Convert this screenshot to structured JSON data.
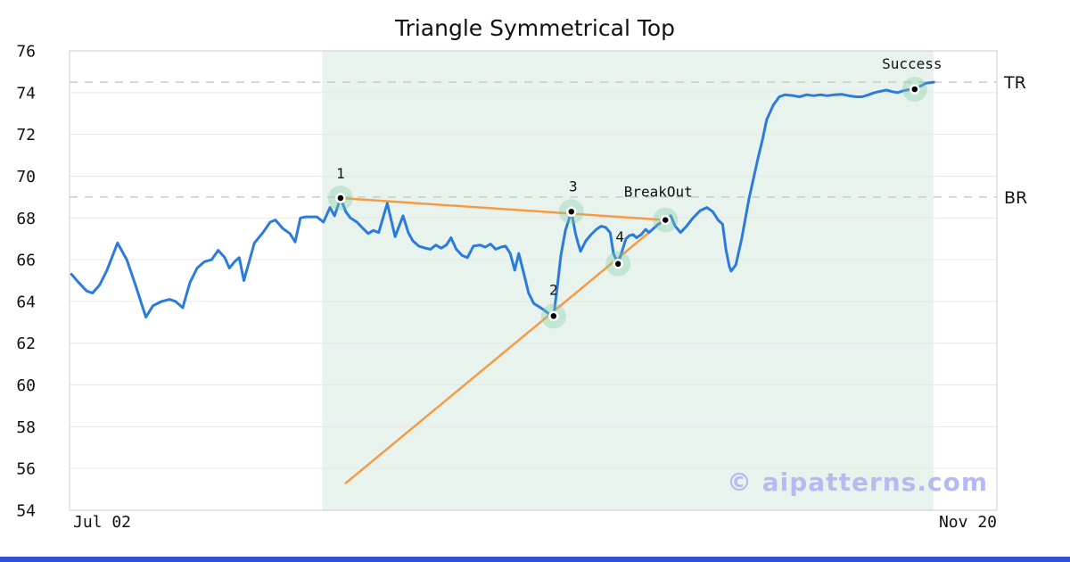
{
  "page": {
    "background": "#ffffff",
    "footer_bar_color": "#2b52d9",
    "text_color": "#111111"
  },
  "watermark": {
    "text": "© aipatterns.com",
    "color": "#b5bbf0"
  },
  "chart_data": {
    "type": "line",
    "title": "Triangle Symmetrical Top",
    "x_axis": {
      "start_label": "Jul 02",
      "end_label": "Nov 20",
      "range_days": [
        0,
        141
      ]
    },
    "y_axis": {
      "min": 54,
      "max": 76,
      "tick_step": 2,
      "ticks": [
        54,
        56,
        58,
        60,
        62,
        64,
        66,
        68,
        70,
        72,
        74,
        76
      ]
    },
    "grid": "horizontal",
    "colors": {
      "price_line": "#2b7bdd",
      "trendline": "#f79b42",
      "pattern_region": "#e9f3ee",
      "gridline": "#e7e7e7",
      "level_dash": "#c9c9c9",
      "plot_border": "#cccccc",
      "marker_halo": "rgba(125,202,160,0.35)",
      "marker_dot": "#000000"
    },
    "levels": [
      {
        "id": "tr",
        "label": "TR",
        "value": 74.5
      },
      {
        "id": "br",
        "label": "BR",
        "value": 69.0
      }
    ],
    "pattern_region": {
      "x_start_day": 38.4,
      "x_end_day": 131.4
    },
    "trendlines": [
      {
        "id": "upper",
        "from": [
          41.2,
          68.95
        ],
        "to": [
          90.6,
          67.9
        ]
      },
      {
        "id": "lower",
        "from": [
          42.0,
          55.3
        ],
        "to": [
          90.6,
          67.95
        ]
      }
    ],
    "markers": [
      {
        "label": "1",
        "day": 41.2,
        "value": 68.95,
        "label_offset": [
          0,
          -22
        ]
      },
      {
        "label": "2",
        "day": 73.6,
        "value": 63.3,
        "label_offset": [
          0,
          -24
        ]
      },
      {
        "label": "3",
        "day": 76.3,
        "value": 68.3,
        "label_offset": [
          2,
          -23
        ]
      },
      {
        "label": "4",
        "day": 83.4,
        "value": 65.8,
        "label_offset": [
          2,
          -25
        ]
      },
      {
        "label": "BreakOut",
        "day": 90.6,
        "value": 67.9,
        "label_offset": [
          -8,
          -26
        ]
      },
      {
        "label": "Success",
        "day": 128.5,
        "value": 74.16,
        "label_offset": [
          -3,
          -23
        ]
      }
    ],
    "price_series": {
      "name": "price",
      "points": [
        [
          0.3,
          65.3
        ],
        [
          1.4,
          64.9
        ],
        [
          2.6,
          64.5
        ],
        [
          3.5,
          64.4
        ],
        [
          4.6,
          64.8
        ],
        [
          5.7,
          65.5
        ],
        [
          7.3,
          66.8
        ],
        [
          8.7,
          66.0
        ],
        [
          10.0,
          64.8
        ],
        [
          11.6,
          63.25
        ],
        [
          12.7,
          63.8
        ],
        [
          14.0,
          64.0
        ],
        [
          15.2,
          64.1
        ],
        [
          16.1,
          64.0
        ],
        [
          17.2,
          63.7
        ],
        [
          18.3,
          64.9
        ],
        [
          19.4,
          65.6
        ],
        [
          20.5,
          65.9
        ],
        [
          21.6,
          66.0
        ],
        [
          22.6,
          66.45
        ],
        [
          23.6,
          66.1
        ],
        [
          24.3,
          65.6
        ],
        [
          25.1,
          65.9
        ],
        [
          25.8,
          66.1
        ],
        [
          26.5,
          65.0
        ],
        [
          28.1,
          66.8
        ],
        [
          29.4,
          67.3
        ],
        [
          30.5,
          67.8
        ],
        [
          31.3,
          67.9
        ],
        [
          32.4,
          67.5
        ],
        [
          33.5,
          67.25
        ],
        [
          34.3,
          66.85
        ],
        [
          35.1,
          68.0
        ],
        [
          35.9,
          68.05
        ],
        [
          37.6,
          68.05
        ],
        [
          38.6,
          67.8
        ],
        [
          39.6,
          68.5
        ],
        [
          40.3,
          68.1
        ],
        [
          41.2,
          68.95
        ],
        [
          42.0,
          68.3
        ],
        [
          42.7,
          68.0
        ],
        [
          43.7,
          67.8
        ],
        [
          44.6,
          67.5
        ],
        [
          45.4,
          67.25
        ],
        [
          46.2,
          67.4
        ],
        [
          47.0,
          67.3
        ],
        [
          48.3,
          68.7
        ],
        [
          49.5,
          67.1
        ],
        [
          50.7,
          68.1
        ],
        [
          51.5,
          67.3
        ],
        [
          52.2,
          66.9
        ],
        [
          53.1,
          66.65
        ],
        [
          54.1,
          66.55
        ],
        [
          54.9,
          66.5
        ],
        [
          55.7,
          66.7
        ],
        [
          56.5,
          66.55
        ],
        [
          57.3,
          66.7
        ],
        [
          58.0,
          67.05
        ],
        [
          58.8,
          66.5
        ],
        [
          59.7,
          66.2
        ],
        [
          60.5,
          66.1
        ],
        [
          61.4,
          66.65
        ],
        [
          62.4,
          66.7
        ],
        [
          63.2,
          66.6
        ],
        [
          64.0,
          66.75
        ],
        [
          64.8,
          66.5
        ],
        [
          65.6,
          66.6
        ],
        [
          66.3,
          66.65
        ],
        [
          67.0,
          66.3
        ],
        [
          67.7,
          65.5
        ],
        [
          68.3,
          66.3
        ],
        [
          69.1,
          65.3
        ],
        [
          69.8,
          64.4
        ],
        [
          70.6,
          63.9
        ],
        [
          71.4,
          63.75
        ],
        [
          72.3,
          63.55
        ],
        [
          72.9,
          63.4
        ],
        [
          73.6,
          63.3
        ],
        [
          74.2,
          64.8
        ],
        [
          74.7,
          66.2
        ],
        [
          75.4,
          67.4
        ],
        [
          76.1,
          68.1
        ],
        [
          76.3,
          68.3
        ],
        [
          76.9,
          67.3
        ],
        [
          77.3,
          66.8
        ],
        [
          77.7,
          66.4
        ],
        [
          78.5,
          66.9
        ],
        [
          79.3,
          67.2
        ],
        [
          80.1,
          67.45
        ],
        [
          80.8,
          67.6
        ],
        [
          81.5,
          67.55
        ],
        [
          82.2,
          67.3
        ],
        [
          82.7,
          66.3
        ],
        [
          83.4,
          65.8
        ],
        [
          84.1,
          66.5
        ],
        [
          84.6,
          67.0
        ],
        [
          85.1,
          67.15
        ],
        [
          85.7,
          67.2
        ],
        [
          86.2,
          67.05
        ],
        [
          86.9,
          67.2
        ],
        [
          87.6,
          67.45
        ],
        [
          88.1,
          67.3
        ],
        [
          88.8,
          67.5
        ],
        [
          89.5,
          67.7
        ],
        [
          90.6,
          67.9
        ],
        [
          91.4,
          68.1
        ],
        [
          92.1,
          67.6
        ],
        [
          92.9,
          67.3
        ],
        [
          93.8,
          67.6
        ],
        [
          94.8,
          68.0
        ],
        [
          95.9,
          68.35
        ],
        [
          96.9,
          68.5
        ],
        [
          97.8,
          68.3
        ],
        [
          98.6,
          67.9
        ],
        [
          99.3,
          67.7
        ],
        [
          99.8,
          66.5
        ],
        [
          100.3,
          65.7
        ],
        [
          100.6,
          65.45
        ],
        [
          101.3,
          65.75
        ],
        [
          102.2,
          67.0
        ],
        [
          103.3,
          68.9
        ],
        [
          104.0,
          69.9
        ],
        [
          104.7,
          70.9
        ],
        [
          105.4,
          71.8
        ],
        [
          106.0,
          72.7
        ],
        [
          107.0,
          73.4
        ],
        [
          107.9,
          73.8
        ],
        [
          108.8,
          73.9
        ],
        [
          110.1,
          73.85
        ],
        [
          111.0,
          73.8
        ],
        [
          112.1,
          73.9
        ],
        [
          113.1,
          73.85
        ],
        [
          114.2,
          73.9
        ],
        [
          115.2,
          73.85
        ],
        [
          116.3,
          73.9
        ],
        [
          117.4,
          73.92
        ],
        [
          118.5,
          73.85
        ],
        [
          119.6,
          73.8
        ],
        [
          120.5,
          73.8
        ],
        [
          121.5,
          73.9
        ],
        [
          122.4,
          74.0
        ],
        [
          123.4,
          74.07
        ],
        [
          124.2,
          74.12
        ],
        [
          125.0,
          74.05
        ],
        [
          125.9,
          74.0
        ],
        [
          126.9,
          74.1
        ],
        [
          127.7,
          74.14
        ],
        [
          128.5,
          74.16
        ],
        [
          129.3,
          74.3
        ],
        [
          130.2,
          74.45
        ],
        [
          131.4,
          74.5
        ]
      ]
    }
  }
}
